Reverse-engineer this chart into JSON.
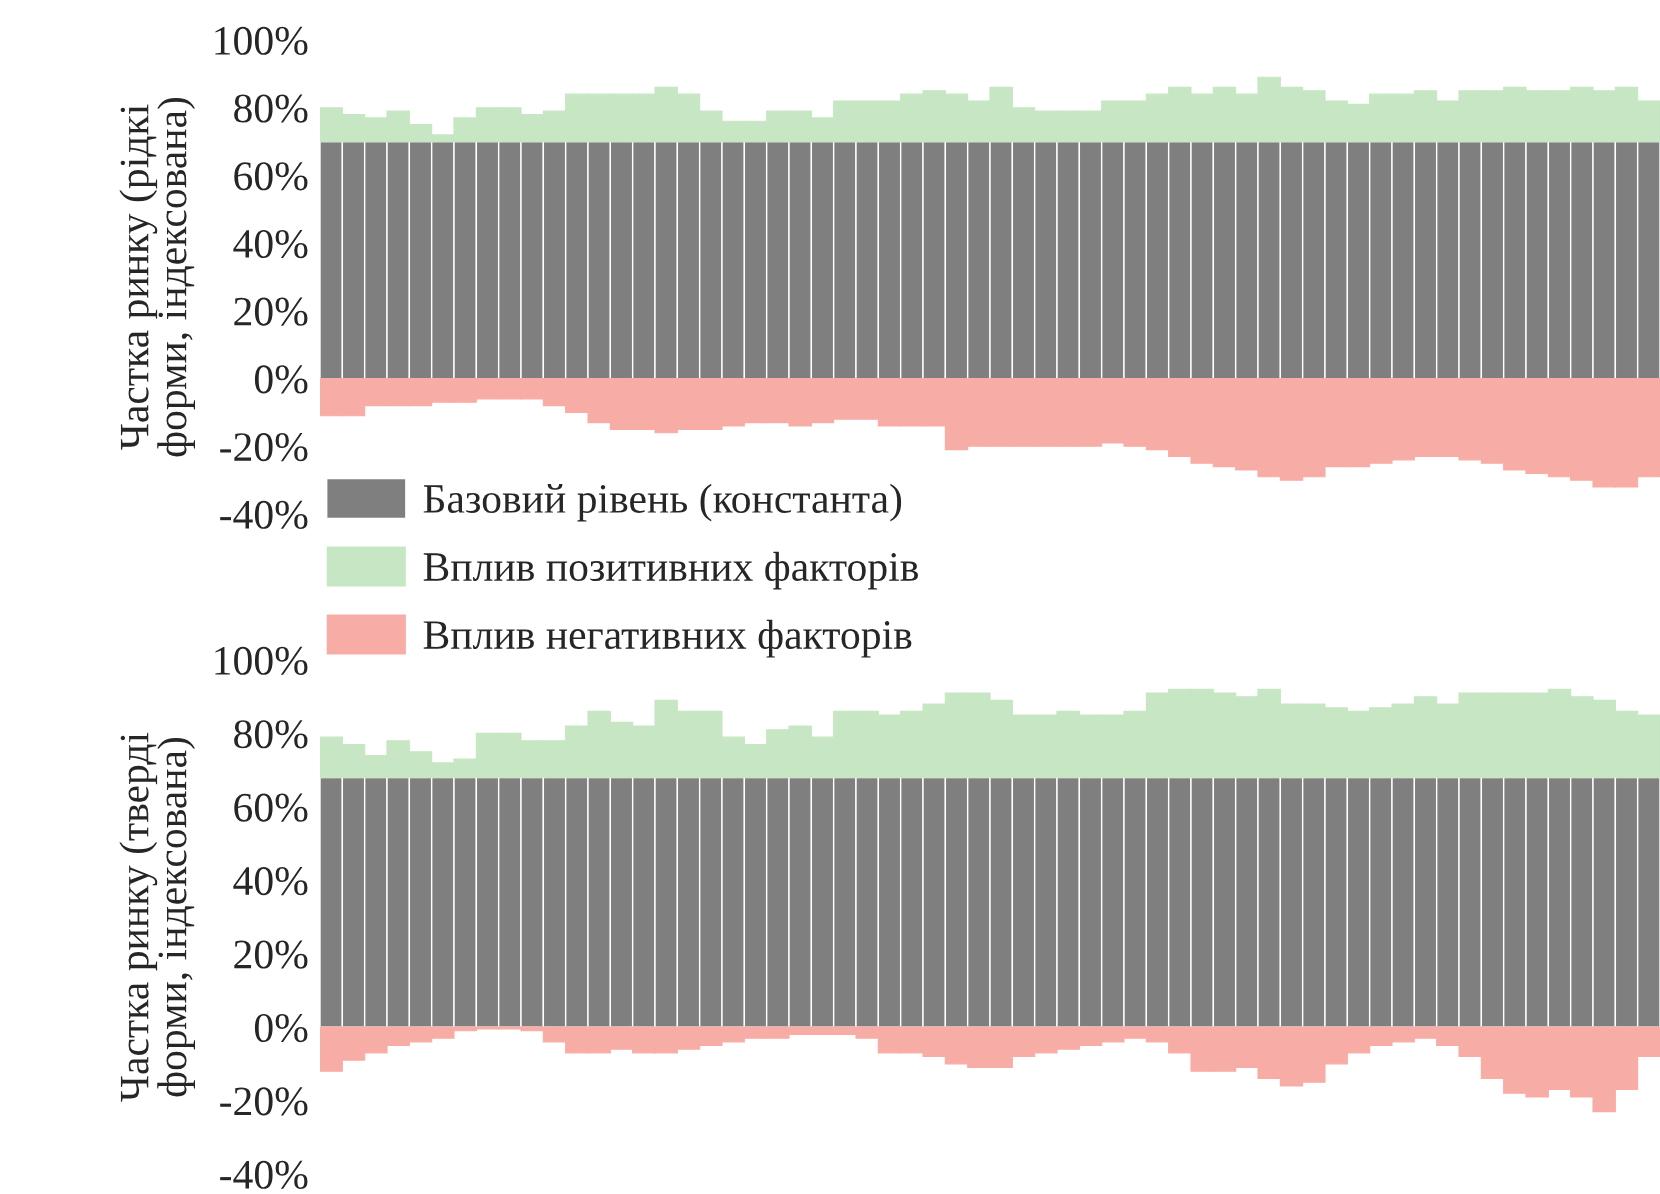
{
  "chart_data": [
    {
      "type": "bar",
      "stacked": true,
      "ylabel": "Частка ринку (рідкі форми, індексована)",
      "ylim": [
        -40,
        100
      ],
      "yticks": [
        {
          "value": 100,
          "label": "100%"
        },
        {
          "value": 80,
          "label": "80%"
        },
        {
          "value": 60,
          "label": "60%"
        },
        {
          "value": 40,
          "label": "40%"
        },
        {
          "value": 20,
          "label": "20%"
        },
        {
          "value": 0,
          "label": "0%"
        },
        {
          "value": -20,
          "label": "-20%"
        },
        {
          "value": -40,
          "label": "-40%"
        }
      ],
      "legend": "bottom left",
      "grid": false,
      "categories": [
        null,
        null,
        null,
        null,
        null,
        null,
        null,
        null,
        null,
        null,
        null,
        null,
        null,
        null,
        null,
        null,
        null,
        null,
        null,
        null,
        null,
        null,
        null,
        null,
        null,
        null,
        null,
        null,
        null,
        null,
        null,
        null,
        null,
        null,
        null,
        null,
        null,
        null,
        null,
        null,
        null,
        null,
        null,
        null,
        null,
        null,
        null,
        null,
        null,
        null,
        null,
        null,
        null,
        null,
        null,
        null,
        null,
        null,
        null,
        null
      ],
      "series": [
        {
          "name": "Базовий рівень (константа)",
          "color": "#7f7f7f",
          "values": [
            70,
            70,
            70,
            70,
            70,
            70,
            70,
            70,
            70,
            70,
            70,
            70,
            70,
            70,
            70,
            70,
            70,
            70,
            70,
            70,
            70,
            70,
            70,
            70,
            70,
            70,
            70,
            70,
            70,
            70,
            70,
            70,
            70,
            70,
            70,
            70,
            70,
            70,
            70,
            70,
            70,
            70,
            70,
            70,
            70,
            70,
            70,
            70,
            70,
            70,
            70,
            70,
            70,
            70,
            70,
            70,
            70,
            70,
            70,
            70
          ]
        },
        {
          "name": "Вплив позитивних факторів",
          "color": "#c7e6c3",
          "values": [
            10,
            8,
            7,
            9,
            5,
            2,
            7,
            10,
            10,
            8,
            9,
            14,
            14,
            14,
            14,
            16,
            14,
            9,
            6,
            6,
            9,
            9,
            7,
            12,
            12,
            12,
            14,
            15,
            14,
            12,
            16,
            10,
            9,
            9,
            9,
            12,
            12,
            14,
            16,
            14,
            16,
            14,
            19,
            16,
            15,
            12,
            11,
            14,
            14,
            15,
            12,
            15,
            15,
            16,
            15,
            15,
            16,
            15,
            16,
            12
          ]
        },
        {
          "name": "Вплив негативних факторів",
          "color": "#f7ada6",
          "values": [
            -11,
            -11,
            -8,
            -8,
            -8,
            -7,
            -7,
            -6,
            -6,
            -6,
            -8,
            -10,
            -13,
            -15,
            -15,
            -16,
            -15,
            -15,
            -14,
            -13,
            -13,
            -14,
            -13,
            -12,
            -12,
            -14,
            -14,
            -14,
            -21,
            -20,
            -20,
            -20,
            -20,
            -20,
            -20,
            -19,
            -20,
            -21,
            -23,
            -25,
            -26,
            -27,
            -29,
            -30,
            -29,
            -26,
            -26,
            -25,
            -24,
            -23,
            -23,
            -24,
            -25,
            -27,
            -28,
            -29,
            -30,
            -32,
            -32,
            -29
          ]
        }
      ]
    },
    {
      "type": "bar",
      "stacked": true,
      "ylabel": "Частка ринку (тверді форми, індексована)",
      "ylim": [
        -40,
        100
      ],
      "yticks": [
        {
          "value": 100,
          "label": "100%"
        },
        {
          "value": 80,
          "label": "80%"
        },
        {
          "value": 60,
          "label": "60%"
        },
        {
          "value": 40,
          "label": "40%"
        },
        {
          "value": 20,
          "label": "20%"
        },
        {
          "value": 0,
          "label": "0%"
        },
        {
          "value": -20,
          "label": "-20%"
        },
        {
          "value": -40,
          "label": "-40%"
        }
      ],
      "grid": false,
      "categories": [
        null,
        null,
        null,
        null,
        null,
        null,
        null,
        null,
        null,
        null,
        null,
        null,
        null,
        null,
        null,
        null,
        null,
        null,
        null,
        null,
        null,
        null,
        null,
        null,
        null,
        null,
        null,
        null,
        null,
        null,
        null,
        null,
        null,
        null,
        null,
        null,
        null,
        null,
        null,
        null,
        null,
        null,
        null,
        null,
        null,
        null,
        null,
        null,
        null,
        null,
        null,
        null,
        null,
        null,
        null,
        null,
        null,
        null,
        null,
        null
      ],
      "series": [
        {
          "color": "#7f7f7f",
          "values": [
            68,
            68,
            68,
            68,
            68,
            68,
            68,
            68,
            68,
            68,
            68,
            68,
            68,
            68,
            68,
            68,
            68,
            68,
            68,
            68,
            68,
            68,
            68,
            68,
            68,
            68,
            68,
            68,
            68,
            68,
            68,
            68,
            68,
            68,
            68,
            68,
            68,
            68,
            68,
            68,
            68,
            68,
            68,
            68,
            68,
            68,
            68,
            68,
            68,
            68,
            68,
            68,
            68,
            68,
            68,
            68,
            68,
            68,
            68,
            68
          ]
        },
        {
          "color": "#c7e6c3",
          "values": [
            11,
            9,
            6,
            10,
            7,
            4,
            5,
            12,
            12,
            10,
            10,
            14,
            18,
            15,
            14,
            21,
            18,
            18,
            11,
            9,
            13,
            14,
            11,
            18,
            18,
            17,
            18,
            20,
            23,
            23,
            21,
            17,
            17,
            18,
            17,
            17,
            18,
            23,
            24,
            24,
            23,
            22,
            24,
            20,
            20,
            19,
            18,
            19,
            20,
            22,
            20,
            23,
            23,
            23,
            23,
            24,
            22,
            21,
            18,
            17
          ]
        },
        {
          "color": "#f7ada6",
          "values": [
            -12,
            -9,
            -7,
            -5,
            -4,
            -3,
            -1,
            -0.5,
            -0.5,
            -1,
            -4,
            -7,
            -7,
            -6,
            -7,
            -7,
            -6,
            -5,
            -4,
            -3,
            -3,
            -2,
            -2,
            -2,
            -3,
            -7,
            -7,
            -8,
            -10,
            -11,
            -11,
            -8,
            -7,
            -6,
            -5,
            -4,
            -3,
            -4,
            -7,
            -12,
            -12,
            -11,
            -14,
            -16,
            -15,
            -10,
            -7,
            -5,
            -4,
            -3,
            -5,
            -8,
            -14,
            -18,
            -19,
            -17,
            -19,
            -23,
            -17,
            -8
          ]
        }
      ]
    }
  ]
}
